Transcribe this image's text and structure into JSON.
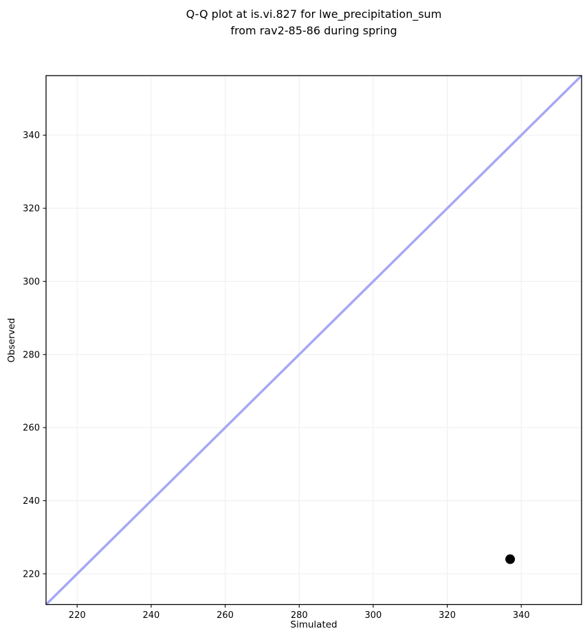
{
  "chart_data": {
    "type": "scatter",
    "title": "Q-Q plot at is.vi.827 for lwe_precipitation_sum\nfrom rav2-85-86 during spring",
    "title_lines": [
      "Q-Q plot at is.vi.827 for lwe_precipitation_sum",
      "from rav2-85-86 during spring"
    ],
    "xlabel": "Simulated",
    "ylabel": "Observed",
    "xlim": [
      211.6,
      356.3
    ],
    "ylim": [
      211.6,
      356.3
    ],
    "xticks": [
      220,
      240,
      260,
      280,
      300,
      320,
      340
    ],
    "yticks": [
      220,
      240,
      260,
      280,
      300,
      320,
      340
    ],
    "grid": true,
    "grid_color": "#ededed",
    "spine_color": "#000000",
    "background_color": "#ffffff",
    "points": [
      {
        "x": 337,
        "y": 224
      }
    ],
    "point_color": "#000000",
    "point_radius": 7,
    "reference_line": {
      "x1": 211.6,
      "y1": 211.6,
      "x2": 356.3,
      "y2": 356.3,
      "color": "#a7a7f4",
      "width": 3.5
    },
    "legend": null
  }
}
